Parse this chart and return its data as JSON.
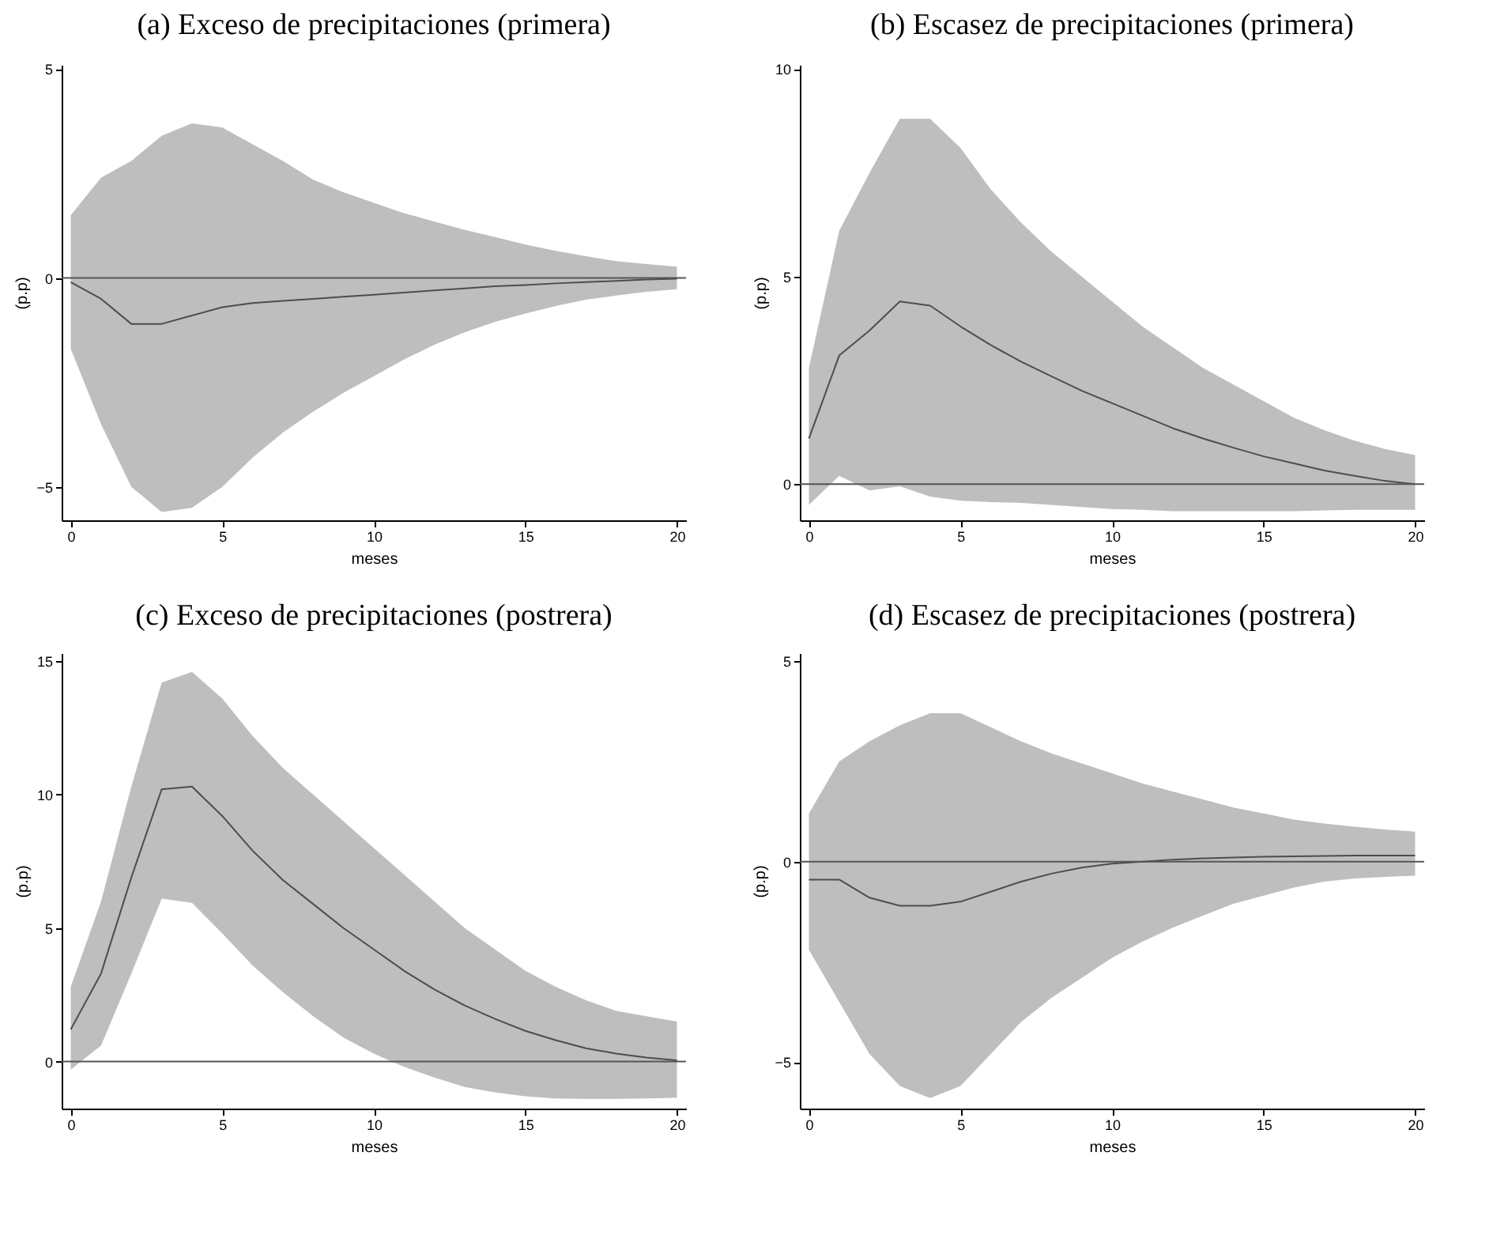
{
  "chart_data": [
    {
      "type": "line",
      "title": "(a) Exceso de precipitaciones (primera)",
      "xlabel": "meses",
      "ylabel": "(p.p)",
      "x": [
        0,
        1,
        2,
        3,
        4,
        5,
        6,
        7,
        8,
        9,
        10,
        11,
        12,
        13,
        14,
        15,
        16,
        17,
        18,
        19,
        20
      ],
      "xlim": [
        -0.3,
        20.3
      ],
      "xticks": [
        0,
        5,
        10,
        15,
        20
      ],
      "ylim": [
        -5.8,
        5.1
      ],
      "yticks": [
        -5,
        0,
        5
      ],
      "grid": false,
      "ref_lines": [
        {
          "axis": "y",
          "value": 0
        }
      ],
      "series": [
        {
          "color": "#4d4d4d",
          "values": [
            -0.1,
            -0.5,
            -1.1,
            -1.1,
            -0.9,
            -0.7,
            -0.6,
            -0.55,
            -0.5,
            -0.45,
            -0.4,
            -0.35,
            -0.3,
            -0.25,
            -0.2,
            -0.17,
            -0.13,
            -0.1,
            -0.07,
            -0.04,
            -0.02
          ],
          "upper": [
            1.5,
            2.4,
            2.8,
            3.4,
            3.7,
            3.6,
            3.2,
            2.8,
            2.35,
            2.05,
            1.8,
            1.55,
            1.35,
            1.15,
            0.98,
            0.8,
            0.65,
            0.52,
            0.4,
            0.33,
            0.27
          ],
          "lower": [
            -1.7,
            -3.5,
            -5.0,
            -5.6,
            -5.5,
            -5.0,
            -4.3,
            -3.7,
            -3.2,
            -2.75,
            -2.35,
            -1.95,
            -1.6,
            -1.3,
            -1.05,
            -0.85,
            -0.67,
            -0.52,
            -0.42,
            -0.33,
            -0.27
          ]
        }
      ]
    },
    {
      "type": "line",
      "title": "(b) Escasez de precipitaciones (primera)",
      "xlabel": "meses",
      "ylabel": "(p.p)",
      "x": [
        0,
        1,
        2,
        3,
        4,
        5,
        6,
        7,
        8,
        9,
        10,
        11,
        12,
        13,
        14,
        15,
        16,
        17,
        18,
        19,
        20
      ],
      "xlim": [
        -0.3,
        20.3
      ],
      "xticks": [
        0,
        5,
        10,
        15,
        20
      ],
      "ylim": [
        -0.87,
        10.1
      ],
      "yticks": [
        0,
        5,
        10
      ],
      "grid": false,
      "ref_lines": [
        {
          "axis": "y",
          "value": 0
        }
      ],
      "series": [
        {
          "color": "#4d4d4d",
          "values": [
            1.1,
            3.1,
            3.7,
            4.4,
            4.3,
            3.8,
            3.35,
            2.95,
            2.6,
            2.25,
            1.95,
            1.65,
            1.35,
            1.1,
            0.88,
            0.67,
            0.5,
            0.33,
            0.2,
            0.08,
            0
          ],
          "upper": [
            2.8,
            6.1,
            7.5,
            8.8,
            8.8,
            8.1,
            7.1,
            6.3,
            5.6,
            5.0,
            4.4,
            3.8,
            3.3,
            2.8,
            2.4,
            2.0,
            1.6,
            1.3,
            1.05,
            0.85,
            0.7
          ],
          "lower": [
            -0.5,
            0.2,
            -0.15,
            -0.05,
            -0.3,
            -0.4,
            -0.43,
            -0.45,
            -0.5,
            -0.55,
            -0.6,
            -0.62,
            -0.65,
            -0.65,
            -0.65,
            -0.65,
            -0.65,
            -0.63,
            -0.62,
            -0.62,
            -0.62
          ]
        }
      ]
    },
    {
      "type": "line",
      "title": "(c) Exceso de precipitaciones (postrera)",
      "xlabel": "meses",
      "ylabel": "(p.p)",
      "x": [
        0,
        1,
        2,
        3,
        4,
        5,
        6,
        7,
        8,
        9,
        10,
        11,
        12,
        13,
        14,
        15,
        16,
        17,
        18,
        19,
        20
      ],
      "xlim": [
        -0.3,
        20.3
      ],
      "xticks": [
        0,
        5,
        10,
        15,
        20
      ],
      "ylim": [
        -1.76,
        15.3
      ],
      "yticks": [
        0,
        5,
        10,
        15
      ],
      "grid": false,
      "ref_lines": [
        {
          "axis": "y",
          "value": 0
        }
      ],
      "series": [
        {
          "color": "#4d4d4d",
          "values": [
            1.2,
            3.3,
            6.9,
            10.2,
            10.3,
            9.2,
            7.9,
            6.8,
            5.9,
            5.0,
            4.2,
            3.4,
            2.7,
            2.1,
            1.6,
            1.15,
            0.8,
            0.5,
            0.3,
            0.15,
            0.05
          ],
          "upper": [
            2.8,
            6.0,
            10.3,
            14.2,
            14.6,
            13.6,
            12.2,
            11.0,
            10.0,
            9.0,
            8.0,
            7.0,
            6.0,
            5.0,
            4.2,
            3.4,
            2.8,
            2.3,
            1.9,
            1.7,
            1.5
          ],
          "lower": [
            -0.3,
            0.6,
            3.3,
            6.1,
            5.95,
            4.8,
            3.6,
            2.6,
            1.7,
            0.9,
            0.3,
            -0.2,
            -0.6,
            -0.95,
            -1.15,
            -1.3,
            -1.38,
            -1.4,
            -1.4,
            -1.38,
            -1.35
          ]
        }
      ]
    },
    {
      "type": "line",
      "title": "(d) Escasez de precipitaciones (postrera)",
      "xlabel": "meses",
      "ylabel": "(p.p)",
      "x": [
        0,
        1,
        2,
        3,
        4,
        5,
        6,
        7,
        8,
        9,
        10,
        11,
        12,
        13,
        14,
        15,
        16,
        17,
        18,
        19,
        20
      ],
      "xlim": [
        -0.3,
        20.3
      ],
      "xticks": [
        0,
        5,
        10,
        15,
        20
      ],
      "ylim": [
        -6.16,
        5.2
      ],
      "yticks": [
        -5,
        0,
        5
      ],
      "grid": false,
      "ref_lines": [
        {
          "axis": "y",
          "value": 0
        }
      ],
      "series": [
        {
          "color": "#4d4d4d",
          "values": [
            -0.45,
            -0.45,
            -0.9,
            -1.1,
            -1.1,
            -1.0,
            -0.75,
            -0.5,
            -0.3,
            -0.15,
            -0.05,
            0.0,
            0.05,
            0.08,
            0.1,
            0.12,
            0.13,
            0.14,
            0.15,
            0.15,
            0.15
          ],
          "upper": [
            1.2,
            2.5,
            3.0,
            3.4,
            3.7,
            3.7,
            3.35,
            3.0,
            2.7,
            2.45,
            2.2,
            1.95,
            1.75,
            1.55,
            1.35,
            1.2,
            1.05,
            0.95,
            0.87,
            0.8,
            0.75
          ],
          "lower": [
            -2.2,
            -3.5,
            -4.8,
            -5.6,
            -5.9,
            -5.6,
            -4.8,
            -4.0,
            -3.4,
            -2.9,
            -2.4,
            -2.0,
            -1.65,
            -1.35,
            -1.05,
            -0.85,
            -0.65,
            -0.5,
            -0.42,
            -0.38,
            -0.35
          ]
        }
      ]
    }
  ]
}
